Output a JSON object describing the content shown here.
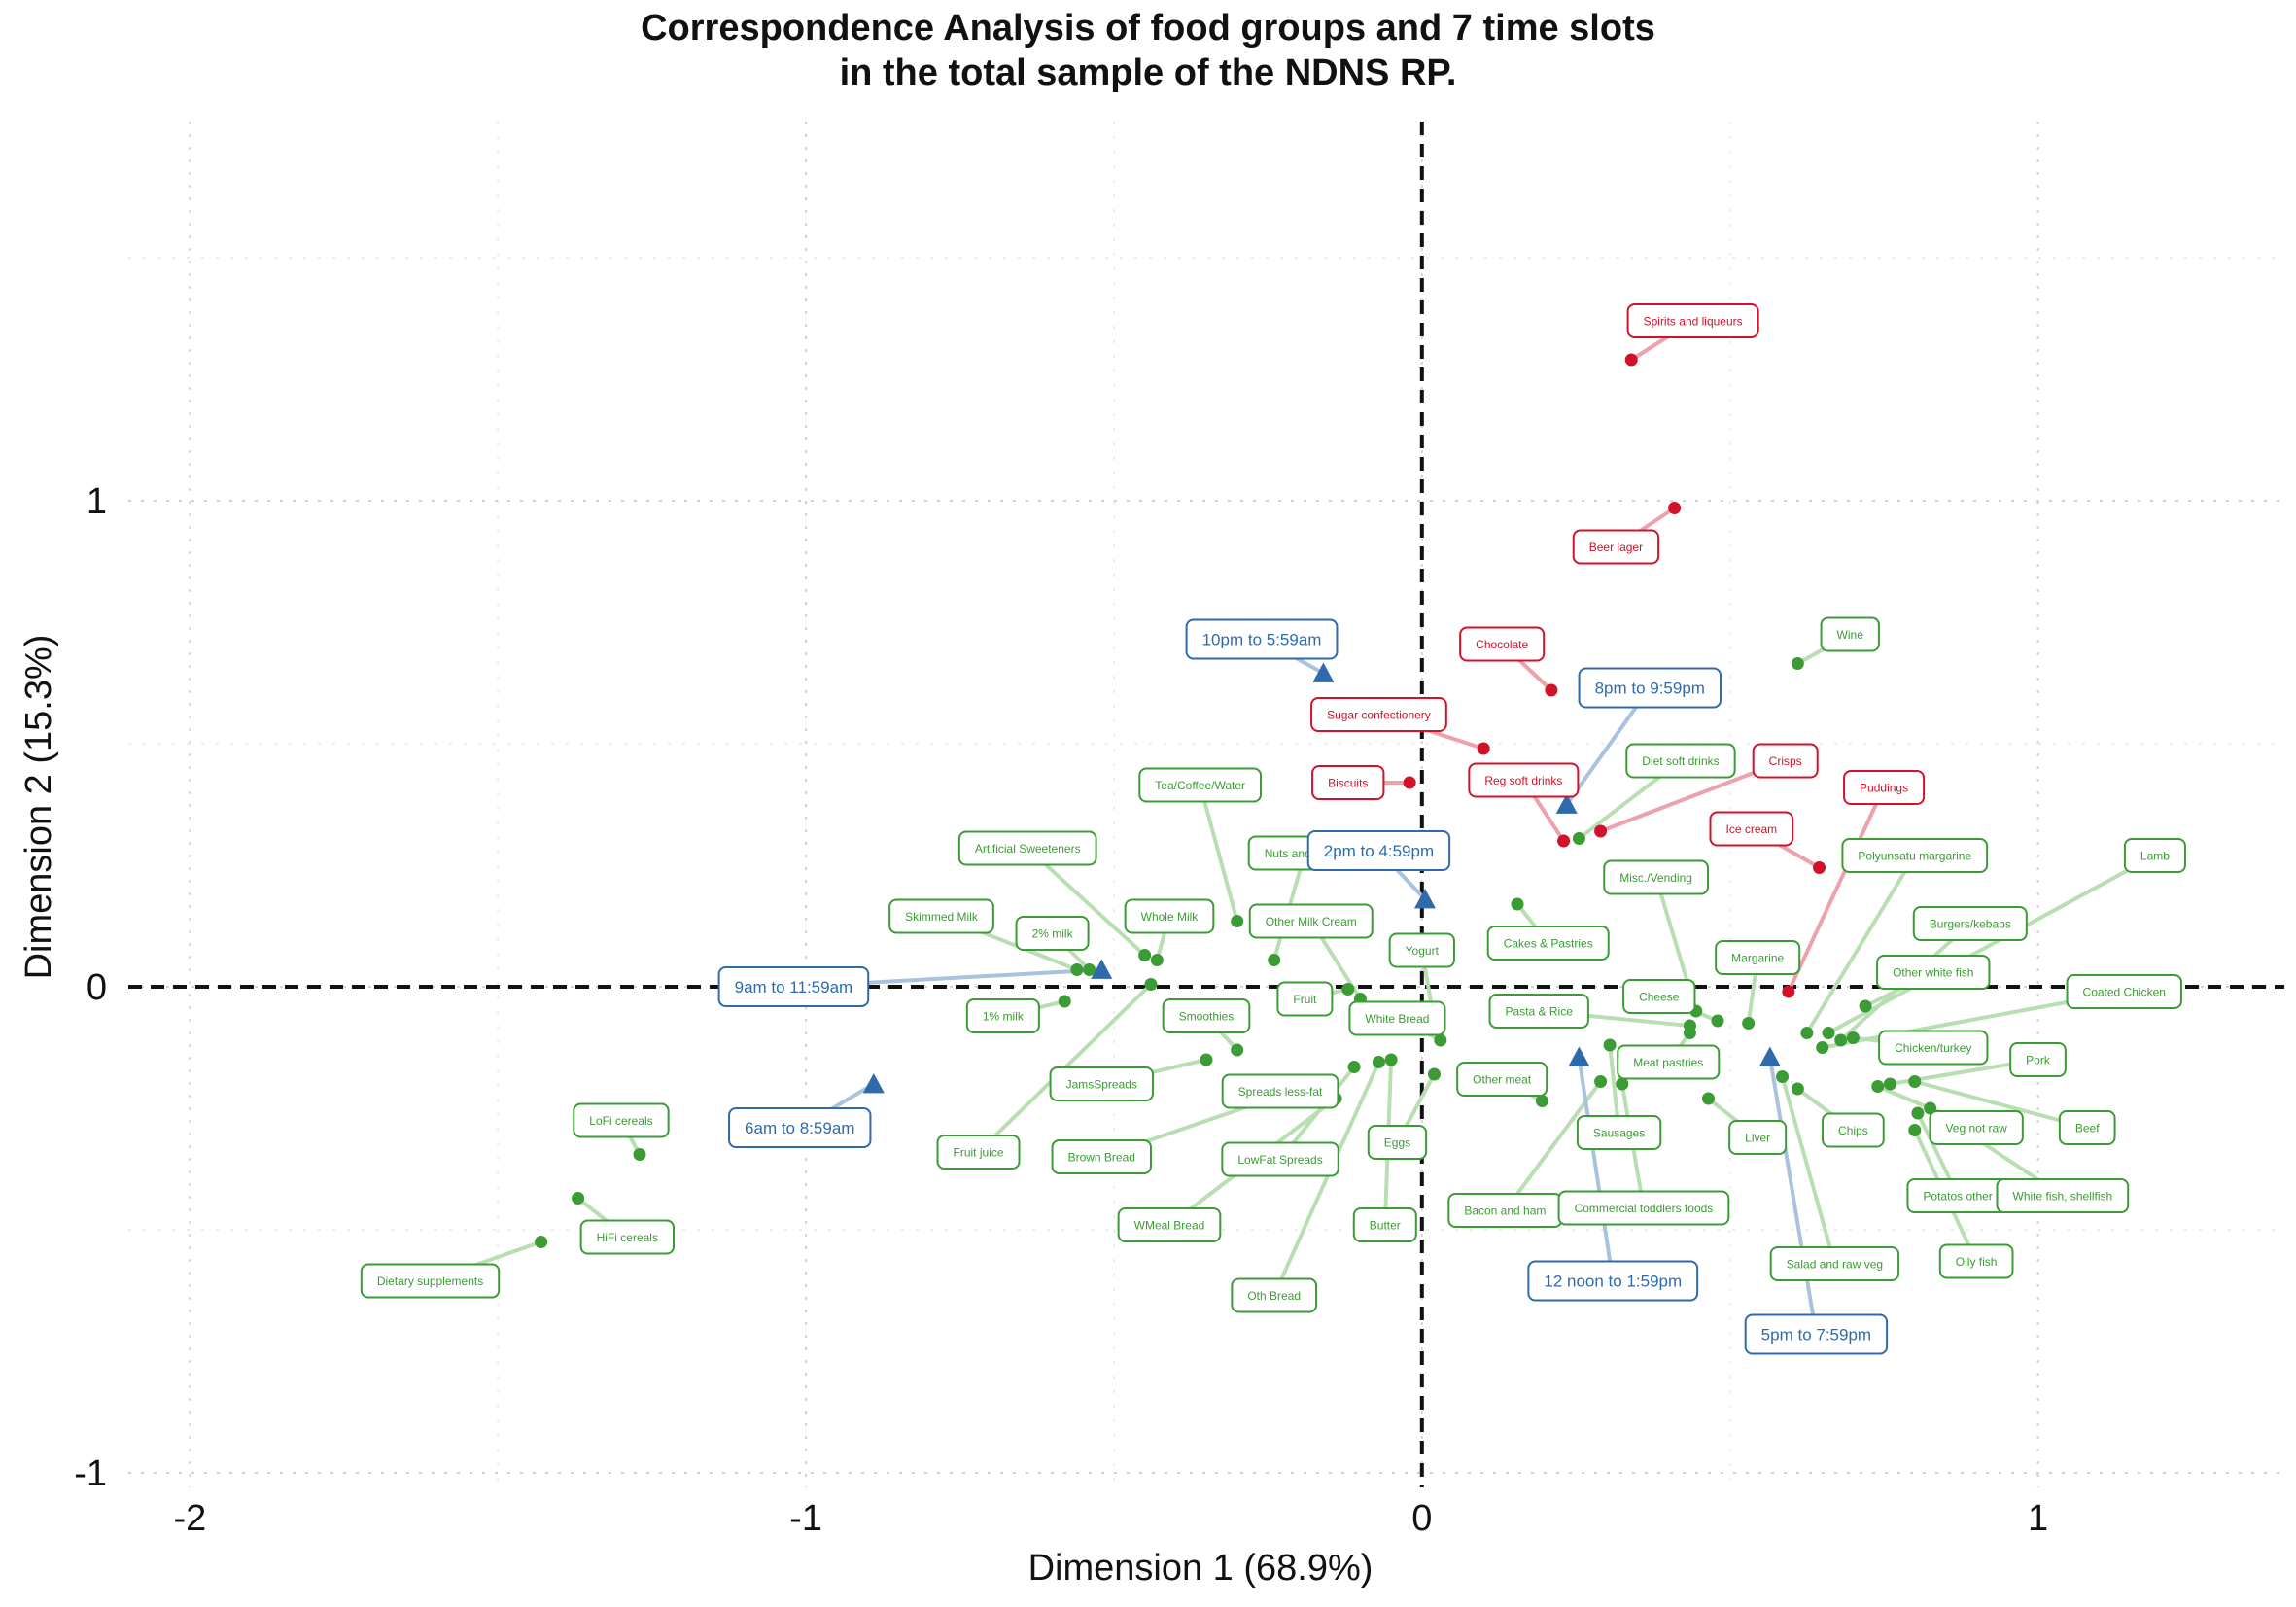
{
  "chart_data": {
    "type": "scatter",
    "title_line1": "Correspondence Analysis of food groups and 7 time slots",
    "title_line2": "in the total sample of the NDNS RP.",
    "xlabel": "Dimension 1 (68.9%)",
    "ylabel": "Dimension 2 (15.3%)",
    "xlim": [
      -2.1,
      1.4
    ],
    "ylim": [
      -1.03,
      1.78
    ],
    "x_ticks": [
      {
        "value": -2,
        "label": "-2"
      },
      {
        "value": -1,
        "label": "-1"
      },
      {
        "value": 0,
        "label": "0"
      },
      {
        "value": 1,
        "label": "1"
      }
    ],
    "y_ticks": [
      {
        "value": -1,
        "label": "-1"
      },
      {
        "value": 0,
        "label": "0"
      },
      {
        "value": 1,
        "label": "1"
      }
    ],
    "grid": true,
    "colors": {
      "time_slot": "#2f6aad",
      "food_green": "#3b9b34",
      "food_red": "#d0122a",
      "leader_green": "#b8deb2",
      "leader_red": "#eda1ab",
      "leader_blue": "#a9c2de"
    },
    "time_slots": [
      {
        "name": "6am to 8:59am",
        "x": -0.89,
        "y": -0.2,
        "lx": -1.01,
        "ly": -0.29
      },
      {
        "name": "9am to 11:59am",
        "x": -0.52,
        "y": 0.035,
        "lx": -1.02,
        "ly": 0.0
      },
      {
        "name": "10pm to 5:59am",
        "x": -0.16,
        "y": 0.645,
        "lx": -0.26,
        "ly": 0.715
      },
      {
        "name": "2pm to 4:59pm",
        "x": 0.005,
        "y": 0.18,
        "lx": -0.07,
        "ly": 0.28
      },
      {
        "name": "8pm to 9:59pm",
        "x": 0.235,
        "y": 0.375,
        "lx": 0.37,
        "ly": 0.615
      },
      {
        "name": "12 noon to 1:59pm",
        "x": 0.255,
        "y": -0.145,
        "lx": 0.31,
        "ly": -0.605
      },
      {
        "name": "5pm to 7:59pm",
        "x": 0.565,
        "y": -0.145,
        "lx": 0.64,
        "ly": -0.715
      }
    ],
    "foods_green": [
      {
        "name": "Dietary supplements",
        "x": -1.43,
        "y": -0.525,
        "lx": -1.61,
        "ly": -0.605
      },
      {
        "name": "HiFi cereals",
        "x": -1.37,
        "y": -0.435,
        "lx": -1.29,
        "ly": -0.515
      },
      {
        "name": "LoFi cereals",
        "x": -1.27,
        "y": -0.345,
        "lx": -1.3,
        "ly": -0.275
      },
      {
        "name": "Skimmed Milk",
        "x": -0.56,
        "y": 0.035,
        "lx": -0.78,
        "ly": 0.145
      },
      {
        "name": "2% milk",
        "x": -0.54,
        "y": 0.035,
        "lx": -0.6,
        "ly": 0.11
      },
      {
        "name": "1% milk",
        "x": -0.58,
        "y": -0.03,
        "lx": -0.68,
        "ly": -0.06
      },
      {
        "name": "Artificial Sweeteners",
        "x": -0.45,
        "y": 0.065,
        "lx": -0.64,
        "ly": 0.285
      },
      {
        "name": "Whole Milk",
        "x": -0.43,
        "y": 0.055,
        "lx": -0.41,
        "ly": 0.145
      },
      {
        "name": "Tea/Coffee/Water",
        "x": -0.3,
        "y": 0.135,
        "lx": -0.36,
        "ly": 0.415
      },
      {
        "name": "Fruit juice",
        "x": -0.44,
        "y": 0.005,
        "lx": -0.72,
        "ly": -0.34
      },
      {
        "name": "JamsSpreads",
        "x": -0.35,
        "y": -0.15,
        "lx": -0.52,
        "ly": -0.2
      },
      {
        "name": "Smoothies",
        "x": -0.3,
        "y": -0.13,
        "lx": -0.35,
        "ly": -0.06
      },
      {
        "name": "Spreads less-fat",
        "x": -0.16,
        "y": -0.23,
        "lx": -0.23,
        "ly": -0.215
      },
      {
        "name": "Brown Bread",
        "x": -0.2,
        "y": -0.21,
        "lx": -0.52,
        "ly": -0.35
      },
      {
        "name": "WMeal Bread",
        "x": -0.14,
        "y": -0.23,
        "lx": -0.41,
        "ly": -0.49
      },
      {
        "name": "LowFat Spreads",
        "x": -0.11,
        "y": -0.165,
        "lx": -0.23,
        "ly": -0.355
      },
      {
        "name": "Oth Bread",
        "x": -0.07,
        "y": -0.155,
        "lx": -0.24,
        "ly": -0.635
      },
      {
        "name": "Nuts and seeds",
        "x": -0.24,
        "y": 0.055,
        "lx": -0.19,
        "ly": 0.275
      },
      {
        "name": "Other Milk Cream",
        "x": -0.1,
        "y": -0.025,
        "lx": -0.18,
        "ly": 0.135
      },
      {
        "name": "Fruit",
        "x": -0.12,
        "y": -0.005,
        "lx": -0.19,
        "ly": -0.025
      },
      {
        "name": "White Bread",
        "x": 0.03,
        "y": -0.11,
        "lx": -0.04,
        "ly": -0.065
      },
      {
        "name": "Yogurt",
        "x": 0.02,
        "y": -0.07,
        "lx": 0.0,
        "ly": 0.075
      },
      {
        "name": "Eggs",
        "x": 0.02,
        "y": -0.18,
        "lx": -0.04,
        "ly": -0.32
      },
      {
        "name": "Butter",
        "x": -0.05,
        "y": -0.15,
        "lx": -0.06,
        "ly": -0.49
      },
      {
        "name": "Cakes & Pastries",
        "x": 0.155,
        "y": 0.17,
        "lx": 0.205,
        "ly": 0.09
      },
      {
        "name": "Pasta & Rice",
        "x": 0.435,
        "y": -0.08,
        "lx": 0.19,
        "ly": -0.05
      },
      {
        "name": "Other meat",
        "x": 0.195,
        "y": -0.235,
        "lx": 0.13,
        "ly": -0.19
      },
      {
        "name": "Bacon and ham",
        "x": 0.29,
        "y": -0.195,
        "lx": 0.135,
        "ly": -0.46
      },
      {
        "name": "Sausages",
        "x": 0.305,
        "y": -0.12,
        "lx": 0.32,
        "ly": -0.3
      },
      {
        "name": "Commercial toddlers foods",
        "x": 0.325,
        "y": -0.2,
        "lx": 0.36,
        "ly": -0.455
      },
      {
        "name": "Meat pastries",
        "x": 0.435,
        "y": -0.095,
        "lx": 0.4,
        "ly": -0.155
      },
      {
        "name": "Cheese",
        "x": 0.48,
        "y": -0.07,
        "lx": 0.385,
        "ly": -0.02
      },
      {
        "name": "Misc./Vending",
        "x": 0.445,
        "y": -0.05,
        "lx": 0.38,
        "ly": 0.225
      },
      {
        "name": "Diet soft drinks",
        "x": 0.255,
        "y": 0.305,
        "lx": 0.42,
        "ly": 0.465
      },
      {
        "name": "Margarine",
        "x": 0.53,
        "y": -0.075,
        "lx": 0.545,
        "ly": 0.06
      },
      {
        "name": "Liver",
        "x": 0.465,
        "y": -0.23,
        "lx": 0.545,
        "ly": -0.31
      },
      {
        "name": "Chips",
        "x": 0.61,
        "y": -0.21,
        "lx": 0.7,
        "ly": -0.295
      },
      {
        "name": "Salad and raw veg",
        "x": 0.585,
        "y": -0.185,
        "lx": 0.67,
        "ly": -0.57
      },
      {
        "name": "Wine",
        "x": 0.61,
        "y": 0.665,
        "lx": 0.695,
        "ly": 0.725
      },
      {
        "name": "Polyunsatu margarine",
        "x": 0.625,
        "y": -0.095,
        "lx": 0.8,
        "ly": 0.27
      },
      {
        "name": "Other white fish",
        "x": 0.72,
        "y": -0.04,
        "lx": 0.83,
        "ly": 0.03
      },
      {
        "name": "Chicken/turkey",
        "x": 0.7,
        "y": -0.105,
        "lx": 0.83,
        "ly": -0.125
      },
      {
        "name": "Burgers/kebabs",
        "x": 0.68,
        "y": -0.11,
        "lx": 0.89,
        "ly": 0.13
      },
      {
        "name": "Lamb",
        "x": 0.66,
        "y": -0.095,
        "lx": 1.19,
        "ly": 0.27
      },
      {
        "name": "Coated Chicken",
        "x": 0.65,
        "y": -0.125,
        "lx": 1.14,
        "ly": -0.01
      },
      {
        "name": "Pork",
        "x": 0.76,
        "y": -0.2,
        "lx": 1.0,
        "ly": -0.15
      },
      {
        "name": "Veg not raw",
        "x": 0.74,
        "y": -0.205,
        "lx": 0.9,
        "ly": -0.29
      },
      {
        "name": "Beef",
        "x": 0.8,
        "y": -0.195,
        "lx": 1.08,
        "ly": -0.29
      },
      {
        "name": "Potatos other",
        "x": 0.805,
        "y": -0.26,
        "lx": 0.87,
        "ly": -0.43
      },
      {
        "name": "Oily fish",
        "x": 0.8,
        "y": -0.295,
        "lx": 0.9,
        "ly": -0.565
      },
      {
        "name": "White fish, shellfish",
        "x": 0.825,
        "y": -0.25,
        "lx": 1.04,
        "ly": -0.43
      }
    ],
    "foods_red": [
      {
        "name": "Spirits and liqueurs",
        "x": 0.34,
        "y": 1.29,
        "lx": 0.44,
        "ly": 1.37
      },
      {
        "name": "Beer lager",
        "x": 0.41,
        "y": 0.985,
        "lx": 0.315,
        "ly": 0.905
      },
      {
        "name": "Chocolate",
        "x": 0.21,
        "y": 0.61,
        "lx": 0.13,
        "ly": 0.705
      },
      {
        "name": "Sugar confectionery",
        "x": 0.1,
        "y": 0.49,
        "lx": -0.07,
        "ly": 0.56
      },
      {
        "name": "Biscuits",
        "x": -0.02,
        "y": 0.42,
        "lx": -0.12,
        "ly": 0.42
      },
      {
        "name": "Reg soft drinks",
        "x": 0.23,
        "y": 0.3,
        "lx": 0.165,
        "ly": 0.425
      },
      {
        "name": "Crisps",
        "x": 0.29,
        "y": 0.32,
        "lx": 0.59,
        "ly": 0.465
      },
      {
        "name": "Puddings",
        "x": 0.595,
        "y": -0.01,
        "lx": 0.75,
        "ly": 0.41
      },
      {
        "name": "Ice cream",
        "x": 0.645,
        "y": 0.245,
        "lx": 0.535,
        "ly": 0.325
      }
    ]
  }
}
